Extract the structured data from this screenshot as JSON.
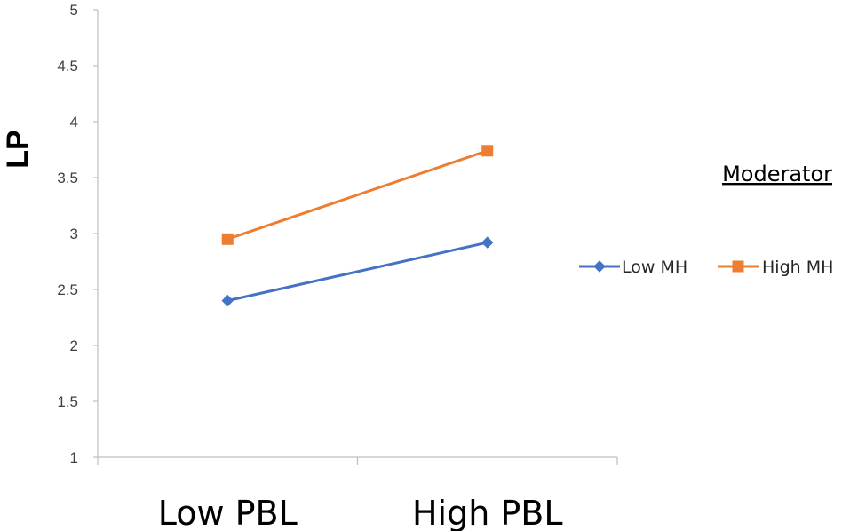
{
  "chart_data": {
    "type": "line",
    "categories": [
      "Low PBL",
      "High PBL"
    ],
    "series": [
      {
        "name": "Low MH",
        "values": [
          2.4,
          2.92
        ],
        "color": "#4472C4",
        "marker": "diamond"
      },
      {
        "name": "High MH",
        "values": [
          2.95,
          3.74
        ],
        "color": "#ED7D31",
        "marker": "square"
      }
    ],
    "ylabel": "LP",
    "ylim": [
      1,
      5
    ],
    "yticks": [
      "1",
      "1.5",
      "2",
      "2.5",
      "3",
      "3.5",
      "4",
      "4.5",
      "5"
    ],
    "legend_title": "Moderator",
    "legend_position": "right",
    "grid": false
  }
}
